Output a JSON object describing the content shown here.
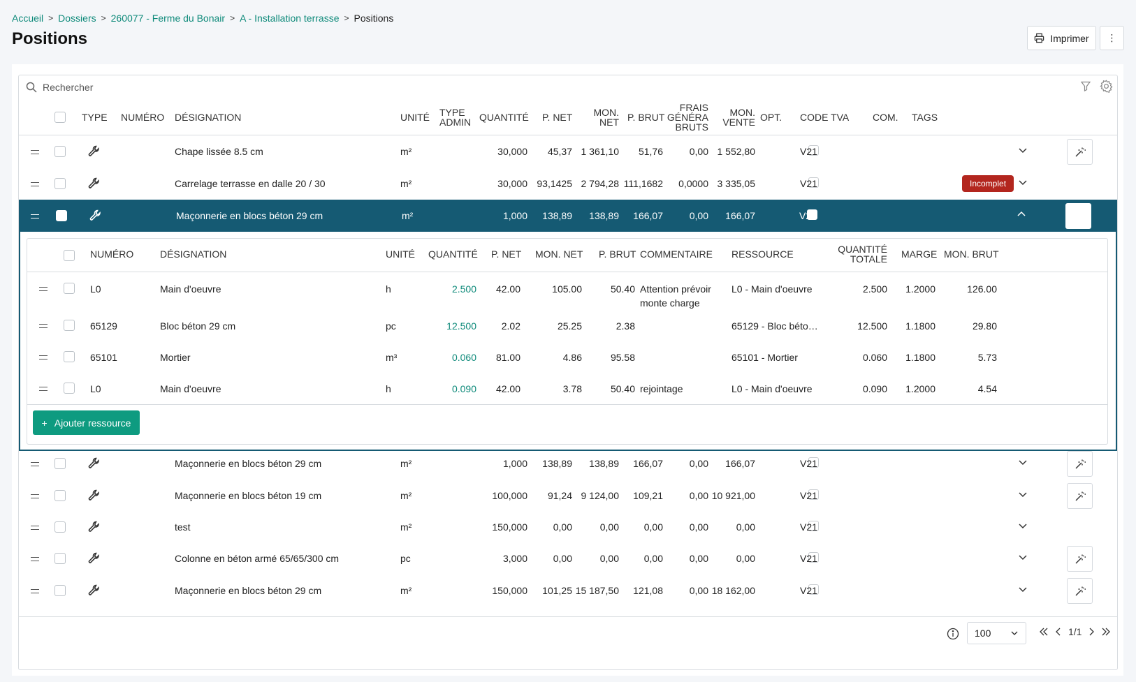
{
  "breadcrumb": {
    "items": [
      "Accueil",
      "Dossiers",
      "260077 - Ferme du Bonair",
      "A - Installation terrasse"
    ],
    "current": "Positions"
  },
  "page_title": "Positions",
  "toolbar": {
    "print_label": "Imprimer",
    "more_label": "⋮"
  },
  "search": {
    "placeholder": "Rechercher"
  },
  "columns": {
    "type": "TYPE",
    "numero": "NUMÉRO",
    "designation": "DÉSIGNATION",
    "unite": "UNITÉ",
    "type_admin_1": "TYPE",
    "type_admin_2": "ADMIN",
    "quantite": "QUANTITÉ",
    "p_net": "P. NET",
    "mon_net_1": "MON.",
    "mon_net_2": "NET",
    "p_brut": "P. BRUT",
    "frais_1": "FRAIS",
    "frais_2": "GÉNÉRA",
    "frais_3": "BRUTS",
    "mon_vente_1": "MON.",
    "mon_vente_2": "VENTE",
    "opt": "OPT.",
    "code_tva": "CODE TVA",
    "com": "COM.",
    "tags": "TAGS"
  },
  "rows": [
    {
      "designation": "Chape lissée 8.5 cm",
      "unite": "m²",
      "quantite": "30,000",
      "p_net": "45,37",
      "mon_net": "1 361,10",
      "p_brut": "51,76",
      "frais": "0,00",
      "mon_vente": "1 552,80",
      "tva": "V21",
      "tag": ""
    },
    {
      "designation": "Carrelage terrasse en dalle 20 / 30",
      "unite": "m²",
      "quantite": "30,000",
      "p_net": "93,1425",
      "mon_net": "2 794,28",
      "p_brut": "111,1682",
      "frais": "0,0000",
      "mon_vente": "3 335,05",
      "tva": "V21",
      "tag": "Incomplet"
    },
    {
      "designation": "Maçonnerie en blocs béton 29 cm",
      "unite": "m²",
      "quantite": "1,000",
      "p_net": "138,89",
      "mon_net": "138,89",
      "p_brut": "166,07",
      "frais": "0,00",
      "mon_vente": "166,07",
      "tva": "V21",
      "tag": ""
    },
    {
      "designation": "Maçonnerie en blocs béton 29 cm",
      "unite": "m²",
      "quantite": "1,000",
      "p_net": "138,89",
      "mon_net": "138,89",
      "p_brut": "166,07",
      "frais": "0,00",
      "mon_vente": "166,07",
      "tva": "V21",
      "tag": ""
    },
    {
      "designation": "Maçonnerie en blocs béton 19 cm",
      "unite": "m²",
      "quantite": "100,000",
      "p_net": "91,24",
      "mon_net": "9 124,00",
      "p_brut": "109,21",
      "frais": "0,00",
      "mon_vente": "10 921,00",
      "tva": "V21",
      "tag": ""
    },
    {
      "designation": "test",
      "unite": "m²",
      "quantite": "150,000",
      "p_net": "0,00",
      "mon_net": "0,00",
      "p_brut": "0,00",
      "frais": "0,00",
      "mon_vente": "0,00",
      "tva": "V21",
      "tag": ""
    },
    {
      "designation": "Colonne en béton armé 65/65/300 cm",
      "unite": "pc",
      "quantite": "3,000",
      "p_net": "0,00",
      "mon_net": "0,00",
      "p_brut": "0,00",
      "frais": "0,00",
      "mon_vente": "0,00",
      "tva": "V21",
      "tag": ""
    },
    {
      "designation": "Maçonnerie en blocs béton 29 cm",
      "unite": "m²",
      "quantite": "150,000",
      "p_net": "101,25",
      "mon_net": "15 187,50",
      "p_brut": "121,08",
      "frais": "0,00",
      "mon_vente": "18 162,00",
      "tva": "V21",
      "tag": ""
    }
  ],
  "sub_columns": {
    "numero": "NUMÉRO",
    "designation": "DÉSIGNATION",
    "unite": "UNITÉ",
    "quantite": "QUANTITÉ",
    "p_net": "P. NET",
    "mon_net": "MON. NET",
    "p_brut": "P. BRUT",
    "commentaire": "COMMENTAIRE",
    "ressource": "RESSOURCE",
    "qte_totale_1": "QUANTITÉ",
    "qte_totale_2": "TOTALE",
    "marge": "MARGE",
    "mon_brut": "MON. BRUT"
  },
  "sub_rows": [
    {
      "numero": "L0",
      "designation": "Main d'oeuvre",
      "unite": "h",
      "quantite": "2.500",
      "p_net": "42.00",
      "mon_net": "105.00",
      "p_brut": "50.40",
      "commentaire_1": "Attention prévoir",
      "commentaire_2": "monte charge",
      "ressource": "L0 - Main d'oeuvre",
      "qte_totale": "2.500",
      "marge": "1.2000",
      "mon_brut": "126.00"
    },
    {
      "numero": "65129",
      "designation": "Bloc béton 29 cm",
      "unite": "pc",
      "quantite": "12.500",
      "p_net": "2.02",
      "mon_net": "25.25",
      "p_brut": "2.38",
      "commentaire_1": "",
      "commentaire_2": "",
      "ressource": "65129 - Bloc béto…",
      "qte_totale": "12.500",
      "marge": "1.1800",
      "mon_brut": "29.80"
    },
    {
      "numero": "65101",
      "designation": "Mortier",
      "unite": "m³",
      "quantite": "0.060",
      "p_net": "81.00",
      "mon_net": "4.86",
      "p_brut": "95.58",
      "commentaire_1": "",
      "commentaire_2": "",
      "ressource": "65101 - Mortier",
      "qte_totale": "0.060",
      "marge": "1.1800",
      "mon_brut": "5.73"
    },
    {
      "numero": "L0",
      "designation": "Main d'oeuvre",
      "unite": "h",
      "quantite": "0.090",
      "p_net": "42.00",
      "mon_net": "3.78",
      "p_brut": "50.40",
      "commentaire_1": "rejointage",
      "commentaire_2": "",
      "ressource": "L0 - Main d'oeuvre",
      "qte_totale": "0.090",
      "marge": "1.2000",
      "mon_brut": "4.54"
    }
  ],
  "add_resource_label": "Ajouter ressource",
  "pagination": {
    "page_size": "100",
    "page": "1/1"
  },
  "colors": {
    "accent": "#0e8a7a",
    "selected_row": "#155a73",
    "tag_red": "#b3261e",
    "button_green": "#0e9b80"
  }
}
